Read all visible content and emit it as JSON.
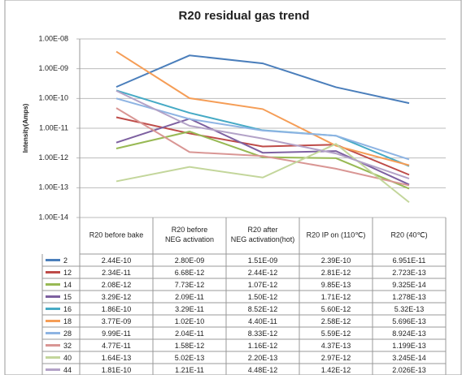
{
  "chart_data": {
    "type": "line",
    "title": "R20 residual gas trend",
    "y_label": "Intensity(Amps)",
    "log_scale": true,
    "grid": true,
    "categories": [
      "R20 before bake",
      "R20 before NEG activation",
      "R20 after NEG activation(hot)",
      "R20 IP on (110℃)",
      "R20 (40℃)"
    ],
    "ylim": [
      1e-14,
      1e-08
    ],
    "yticks": [
      {
        "value": 1e-14,
        "label": "1.00E-14"
      },
      {
        "value": 1e-13,
        "label": "1.00E-13"
      },
      {
        "value": 1e-12,
        "label": "1.00E-12"
      },
      {
        "value": 1e-11,
        "label": "1.00E-11"
      },
      {
        "value": 1e-10,
        "label": "1.00E-10"
      },
      {
        "value": 1e-09,
        "label": "1.00E-09"
      },
      {
        "value": 1e-08,
        "label": "1.00E-08"
      }
    ],
    "series": [
      {
        "name": "2",
        "color": "#4a7ebb",
        "values": [
          2.44e-10,
          2.8e-09,
          1.51e-09,
          2.39e-10,
          6.951e-11
        ],
        "value_labels": [
          "2.44E-10",
          "2.80E-09",
          "1.51E-09",
          "2.39E-10",
          "6.951E-11"
        ]
      },
      {
        "name": "12",
        "color": "#be4b48",
        "values": [
          2.34e-11,
          6.68e-12,
          2.44e-12,
          2.81e-12,
          2.723e-13
        ],
        "value_labels": [
          "2.34E-11",
          "6.68E-12",
          "2.44E-12",
          "2.81E-12",
          "2.723E-13"
        ]
      },
      {
        "name": "14",
        "color": "#98b954",
        "values": [
          2.08e-12,
          7.73e-12,
          1.07e-12,
          9.85e-13,
          9.325e-14
        ],
        "value_labels": [
          "2.08E-12",
          "7.73E-12",
          "1.07E-12",
          "9.85E-13",
          "9.325E-14"
        ]
      },
      {
        "name": "15",
        "color": "#7d60a0",
        "values": [
          3.29e-12,
          2.09e-11,
          1.5e-12,
          1.71e-12,
          1.278e-13
        ],
        "value_labels": [
          "3.29E-12",
          "2.09E-11",
          "1.50E-12",
          "1.71E-12",
          "1.278E-13"
        ]
      },
      {
        "name": "16",
        "color": "#46aac5",
        "values": [
          1.86e-10,
          3.29e-11,
          8.52e-12,
          5.6e-12,
          5.32e-13
        ],
        "value_labels": [
          "1.86E-10",
          "3.29E-11",
          "8.52E-12",
          "5.60E-12",
          "5.32E-13"
        ]
      },
      {
        "name": "18",
        "color": "#f59d56",
        "values": [
          3.77e-09,
          1.02e-10,
          4.4e-11,
          2.58e-12,
          5.696e-13
        ],
        "value_labels": [
          "3.77E-09",
          "1.02E-10",
          "4.40E-11",
          "2.58E-12",
          "5.696E-13"
        ]
      },
      {
        "name": "28",
        "color": "#8eb4e3",
        "values": [
          9.99e-11,
          2.04e-11,
          8.33e-12,
          5.59e-12,
          8.924e-13
        ],
        "value_labels": [
          "9.99E-11",
          "2.04E-11",
          "8.33E-12",
          "5.59E-12",
          "8.924E-13"
        ]
      },
      {
        "name": "32",
        "color": "#d99694",
        "values": [
          4.77e-11,
          1.58e-12,
          1.16e-12,
          4.37e-13,
          1.199e-13
        ],
        "value_labels": [
          "4.77E-11",
          "1.58E-12",
          "1.16E-12",
          "4.37E-13",
          "1.199E-13"
        ]
      },
      {
        "name": "40",
        "color": "#c3d69b",
        "values": [
          1.64e-13,
          5.02e-13,
          2.2e-13,
          2.97e-12,
          3.245e-14
        ],
        "value_labels": [
          "1.64E-13",
          "5.02E-13",
          "2.20E-13",
          "2.97E-12",
          "3.245E-14"
        ]
      },
      {
        "name": "44",
        "color": "#b3a2c7",
        "values": [
          1.81e-10,
          1.21e-11,
          4.48e-12,
          1.42e-12,
          2.026e-13
        ],
        "value_labels": [
          "1.81E-10",
          "1.21E-11",
          "4.48E-12",
          "1.42E-12",
          "2.026E-13"
        ]
      }
    ]
  }
}
